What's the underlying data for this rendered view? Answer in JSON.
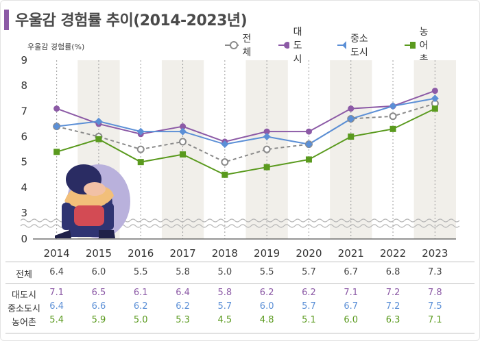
{
  "title": "우울감 경험률 추이(2014-2023년)",
  "colors": {
    "accent": "#8c5aa6",
    "overall": "#8a8a8a",
    "metro": "#8c5aa6",
    "midsize": "#5b8fd6",
    "rural": "#5a9a1e"
  },
  "chart_data": {
    "type": "line",
    "ylabel": "우울감 경험률(%)",
    "categories": [
      "2014",
      "2015",
      "2016",
      "2017",
      "2018",
      "2019",
      "2020",
      "2021",
      "2022",
      "2023"
    ],
    "ylim": [
      0,
      9
    ],
    "y_ticks": [
      "0",
      "3",
      "4",
      "5",
      "6",
      "7",
      "8",
      "9"
    ],
    "axis_break": "between 0 and 3",
    "grid": "vertical dotted lines at each year, alternating shaded columns",
    "legend_position": "top-right",
    "series": [
      {
        "name": "전체",
        "values": [
          6.4,
          6.0,
          5.5,
          5.8,
          5.0,
          5.5,
          5.7,
          6.7,
          6.8,
          7.3
        ],
        "marker": "open-circle",
        "style": "dashed",
        "color": "#8a8a8a"
      },
      {
        "name": "대도시",
        "values": [
          7.1,
          6.5,
          6.1,
          6.4,
          5.8,
          6.2,
          6.2,
          7.1,
          7.2,
          7.8
        ],
        "marker": "circle",
        "style": "solid",
        "color": "#8c5aa6"
      },
      {
        "name": "중소도시",
        "values": [
          6.4,
          6.6,
          6.2,
          6.2,
          5.7,
          6.0,
          5.7,
          6.7,
          7.2,
          7.5
        ],
        "marker": "diamond",
        "style": "solid",
        "color": "#5b8fd6"
      },
      {
        "name": "농어촌",
        "values": [
          5.4,
          5.9,
          5.0,
          5.3,
          4.5,
          4.8,
          5.1,
          6.0,
          6.3,
          7.1
        ],
        "marker": "square",
        "style": "solid",
        "color": "#5a9a1e"
      }
    ]
  },
  "table": {
    "rows": [
      {
        "label": "전체",
        "values": [
          "6.4",
          "6.0",
          "5.5",
          "5.8",
          "5.0",
          "5.5",
          "5.7",
          "6.7",
          "6.8",
          "7.3"
        ],
        "color": "#444444"
      },
      {
        "label": "대도시",
        "values": [
          "7.1",
          "6.5",
          "6.1",
          "6.4",
          "5.8",
          "6.2",
          "6.2",
          "7.1",
          "7.2",
          "7.8"
        ],
        "color": "#8c5aa6"
      },
      {
        "label": "중소도시",
        "values": [
          "6.4",
          "6.6",
          "6.2",
          "6.2",
          "5.7",
          "6.0",
          "5.7",
          "6.7",
          "7.2",
          "7.5"
        ],
        "color": "#5b8fd6"
      },
      {
        "label": "농어촌",
        "values": [
          "5.4",
          "5.9",
          "5.0",
          "5.3",
          "4.5",
          "4.8",
          "5.1",
          "6.0",
          "6.3",
          "7.1"
        ],
        "color": "#5a9a1e"
      }
    ]
  }
}
